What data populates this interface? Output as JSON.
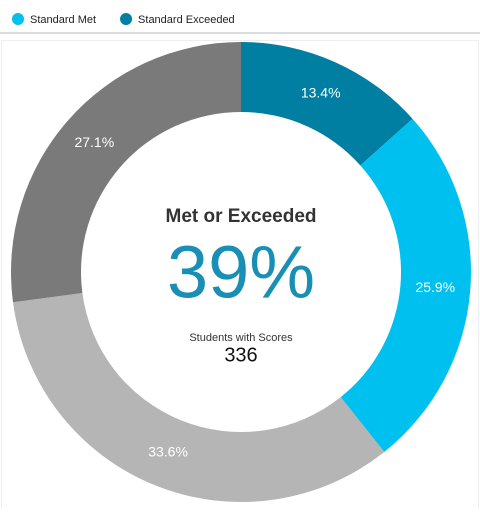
{
  "chart_data": {
    "type": "donut",
    "categories": [
      "Standard Exceeded",
      "Standard Met",
      null,
      null
    ],
    "values": [
      13.4,
      25.9,
      33.6,
      27.1
    ],
    "value_labels": [
      "13.4%",
      "25.9%",
      "33.6%",
      "27.1%"
    ],
    "colors": [
      "#007fa3",
      "#00c0ef",
      "#b5b5b5",
      "#7a7a7a"
    ],
    "center": {
      "title": "Met or Exceeded",
      "value": "39%",
      "subtitle": "Students with Scores",
      "count": "336"
    }
  }
}
